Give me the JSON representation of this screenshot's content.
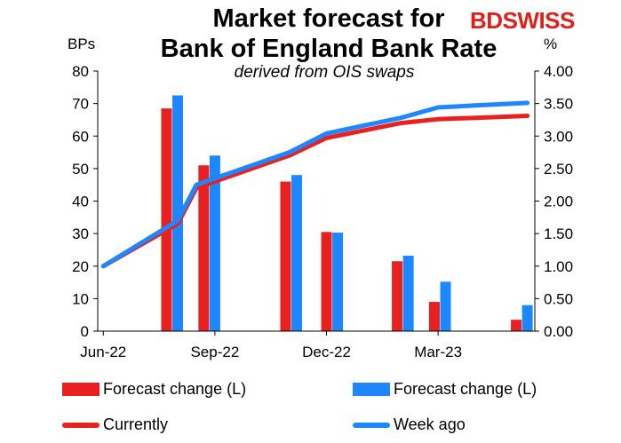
{
  "header": {
    "title_line1": "Market forecast for",
    "title_line2": "Bank of England Bank Rate",
    "subtitle": "derived from OIS swaps",
    "logo_bd": "BD",
    "logo_swiss": "SWISS"
  },
  "colors": {
    "red": "#e8201f",
    "blue": "#1e86ff"
  },
  "chart_data": {
    "type": "bar+line",
    "title": "Market forecast for Bank of England Bank Rate",
    "subtitle": "derived from OIS swaps",
    "ylabel_left": "BPs",
    "ylabel_right": "%",
    "ylim_left": [
      0,
      80
    ],
    "ylim_right": [
      0,
      4
    ],
    "yticks_left": [
      "0",
      "10",
      "20",
      "30",
      "40",
      "50",
      "60",
      "70",
      "80"
    ],
    "yticks_right": [
      "0.00",
      "0.50",
      "1.00",
      "1.50",
      "2.00",
      "2.50",
      "3.00",
      "3.50",
      "4.00"
    ],
    "xtick_labels": [
      "Jun-22",
      "Sep-22",
      "Dec-22",
      "Mar-23"
    ],
    "xtick_positions": [
      0,
      3,
      6,
      9
    ],
    "x_range": [
      -0.15,
      11.6
    ],
    "grid": false,
    "legend_position": "bottom",
    "bars": [
      {
        "name": "Forecast change (L)",
        "color": "#e8201f",
        "points": [
          [
            1.7,
            68.5
          ],
          [
            2.7,
            51
          ],
          [
            4.9,
            46
          ],
          [
            6,
            30.5
          ],
          [
            7.9,
            21.5
          ],
          [
            8.9,
            9
          ],
          [
            11.1,
            3.5
          ]
        ]
      },
      {
        "name": "Forecast change (L)",
        "color": "#1e86ff",
        "points": [
          [
            2.0,
            72.5
          ],
          [
            3.0,
            54
          ],
          [
            5.2,
            48
          ],
          [
            6.3,
            30.3
          ],
          [
            8.2,
            23.2
          ],
          [
            9.2,
            15.2
          ],
          [
            11.4,
            8
          ]
        ]
      }
    ],
    "series": [
      {
        "name": "Currently",
        "axis": "right",
        "color": "#e8201f",
        "x": [
          0,
          2,
          2.5,
          5,
          6,
          8,
          9,
          10,
          11.4
        ],
        "values": [
          1.0,
          1.65,
          2.2,
          2.7,
          2.97,
          3.2,
          3.26,
          3.28,
          3.31
        ]
      },
      {
        "name": "Week ago",
        "axis": "right",
        "color": "#1e86ff",
        "x": [
          0,
          2,
          2.5,
          5,
          6,
          8,
          9,
          10,
          11.4
        ],
        "values": [
          1.0,
          1.7,
          2.25,
          2.75,
          3.04,
          3.28,
          3.44,
          3.47,
          3.51
        ]
      }
    ]
  },
  "legend": {
    "bar_red": "Forecast change (L)",
    "bar_blue": "Forecast change (L)",
    "line_red": "Currently",
    "line_blue": "Week ago"
  }
}
